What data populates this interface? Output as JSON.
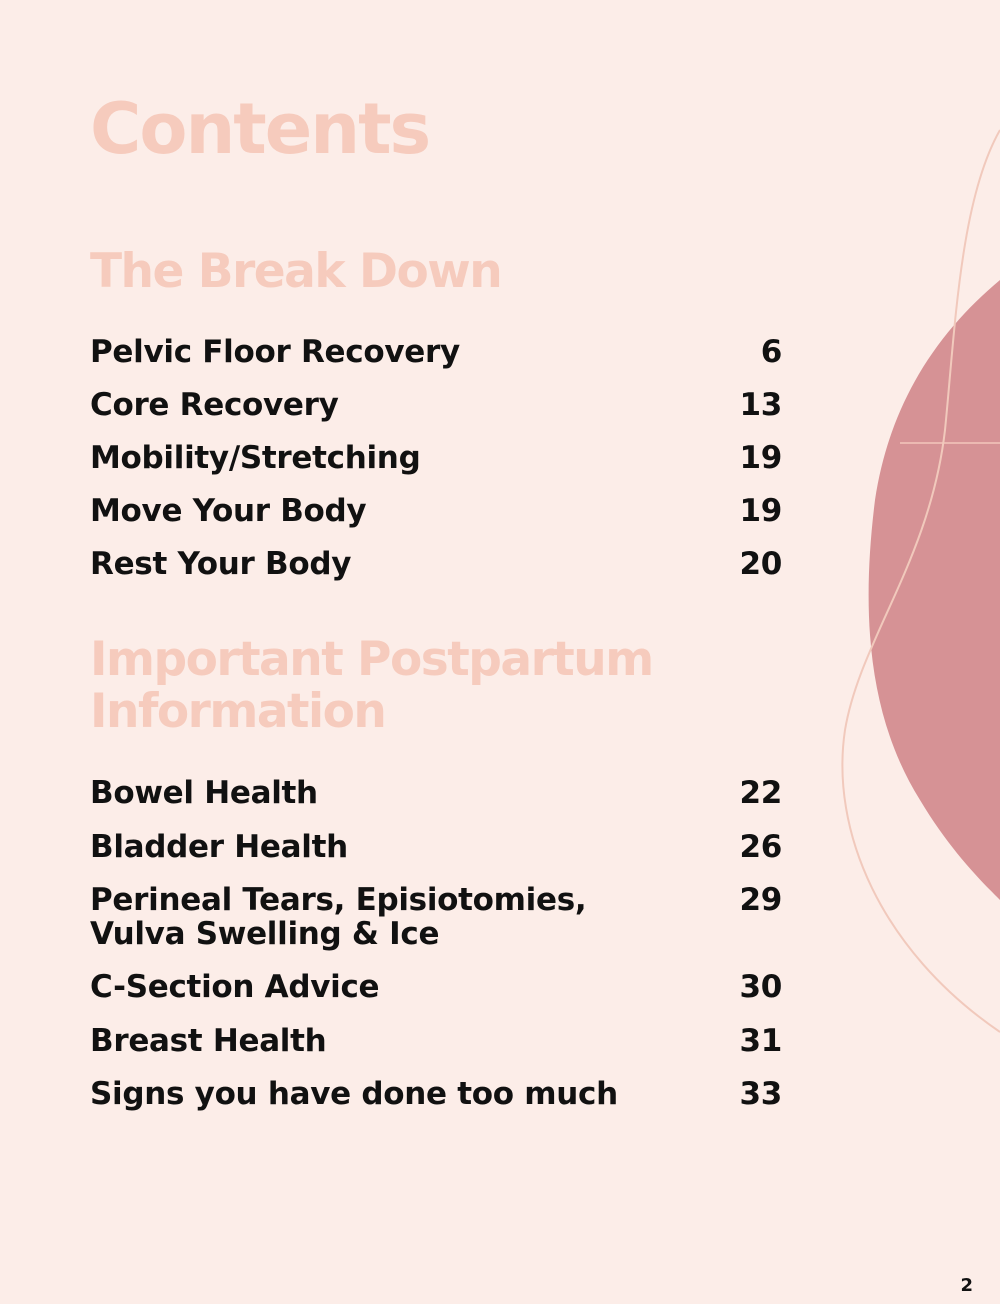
{
  "title": "Contents",
  "colors": {
    "background": "#fcede8",
    "heading": "#f6cbbd",
    "blob": "#d69295",
    "line": "#f1c9bc"
  },
  "sections": [
    {
      "heading": "The Break Down",
      "items": [
        {
          "label": "Pelvic Floor Recovery",
          "page": "6"
        },
        {
          "label": "Core Recovery",
          "page": "13"
        },
        {
          "label": "Mobility/Stretching",
          "page": "19"
        },
        {
          "label": "Move Your Body",
          "page": "19"
        },
        {
          "label": "Rest Your Body",
          "page": "20"
        }
      ]
    },
    {
      "heading": "Important Postpartum\nInformation",
      "items": [
        {
          "label": "Bowel Health",
          "page": "22"
        },
        {
          "label": "Bladder Health",
          "page": "26"
        },
        {
          "label": "Perineal Tears, Episiotomies,\nVulva Swelling & Ice",
          "page": "29"
        },
        {
          "label": "C-Section Advice",
          "page": "30"
        },
        {
          "label": "Breast Health",
          "page": "31"
        },
        {
          "label": "Signs you have done too much",
          "page": "33"
        }
      ]
    }
  ],
  "page_number": "2"
}
